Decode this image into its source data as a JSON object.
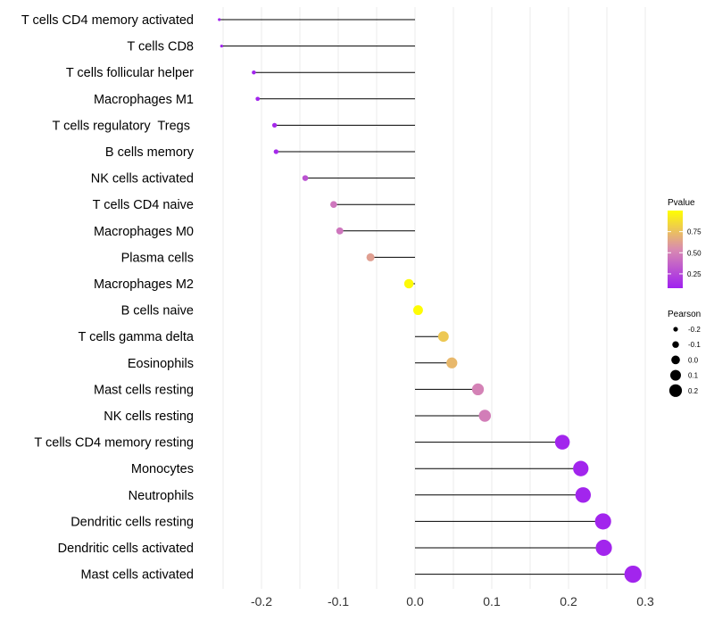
{
  "chart_data": {
    "type": "lollipop",
    "title": "",
    "xlabel": "",
    "ylabel": "",
    "xlim": [
      -0.26,
      0.31
    ],
    "x_ticks": [
      -0.2,
      -0.1,
      0.0,
      0.1,
      0.2,
      0.3
    ],
    "x_tick_labels": [
      "-0.2",
      "-0.1",
      "0.0",
      "0.1",
      "0.2",
      "0.3"
    ],
    "grid": true,
    "categories": [
      "T cells CD4 memory activated",
      "T cells CD8",
      "T cells follicular helper",
      "Macrophages M1",
      "T cells regulatory  Tregs ",
      "B cells memory",
      "NK cells activated",
      "T cells CD4 naive",
      "Macrophages M0",
      "Plasma cells",
      "Macrophages M2",
      "B cells naive",
      "T cells gamma delta",
      "Eosinophils",
      "Mast cells resting",
      "NK cells resting",
      "T cells CD4 memory resting",
      "Monocytes",
      "Neutrophils",
      "Dendritic cells resting",
      "Dendritic cells activated",
      "Mast cells activated"
    ],
    "pearson": [
      -0.255,
      -0.252,
      -0.21,
      -0.205,
      -0.183,
      -0.181,
      -0.143,
      -0.106,
      -0.098,
      -0.058,
      -0.008,
      0.004,
      0.037,
      0.048,
      0.082,
      0.091,
      0.192,
      0.216,
      0.219,
      0.245,
      0.246,
      0.284
    ],
    "pvalue": [
      0.1,
      0.1,
      0.1,
      0.1,
      0.12,
      0.12,
      0.3,
      0.45,
      0.45,
      0.62,
      0.98,
      0.99,
      0.78,
      0.72,
      0.5,
      0.48,
      0.1,
      0.1,
      0.1,
      0.1,
      0.1,
      0.1
    ],
    "legend_position": "right",
    "color_legend": {
      "title": "Pvalue",
      "ticks": [
        0.25,
        0.5,
        0.75
      ],
      "tick_labels": [
        "0.25",
        "0.50",
        "0.75"
      ],
      "range": [
        0.08,
        1.0
      ],
      "low_color": "#a020f0",
      "mid_color": "#d98bb0",
      "high_color": "#ffff00"
    },
    "size_legend": {
      "title": "Pearson",
      "values": [
        -0.2,
        -0.1,
        0.0,
        0.1,
        0.2
      ],
      "labels": [
        "-0.2",
        "-0.1",
        "0.0",
        "0.1",
        "0.2"
      ]
    }
  }
}
